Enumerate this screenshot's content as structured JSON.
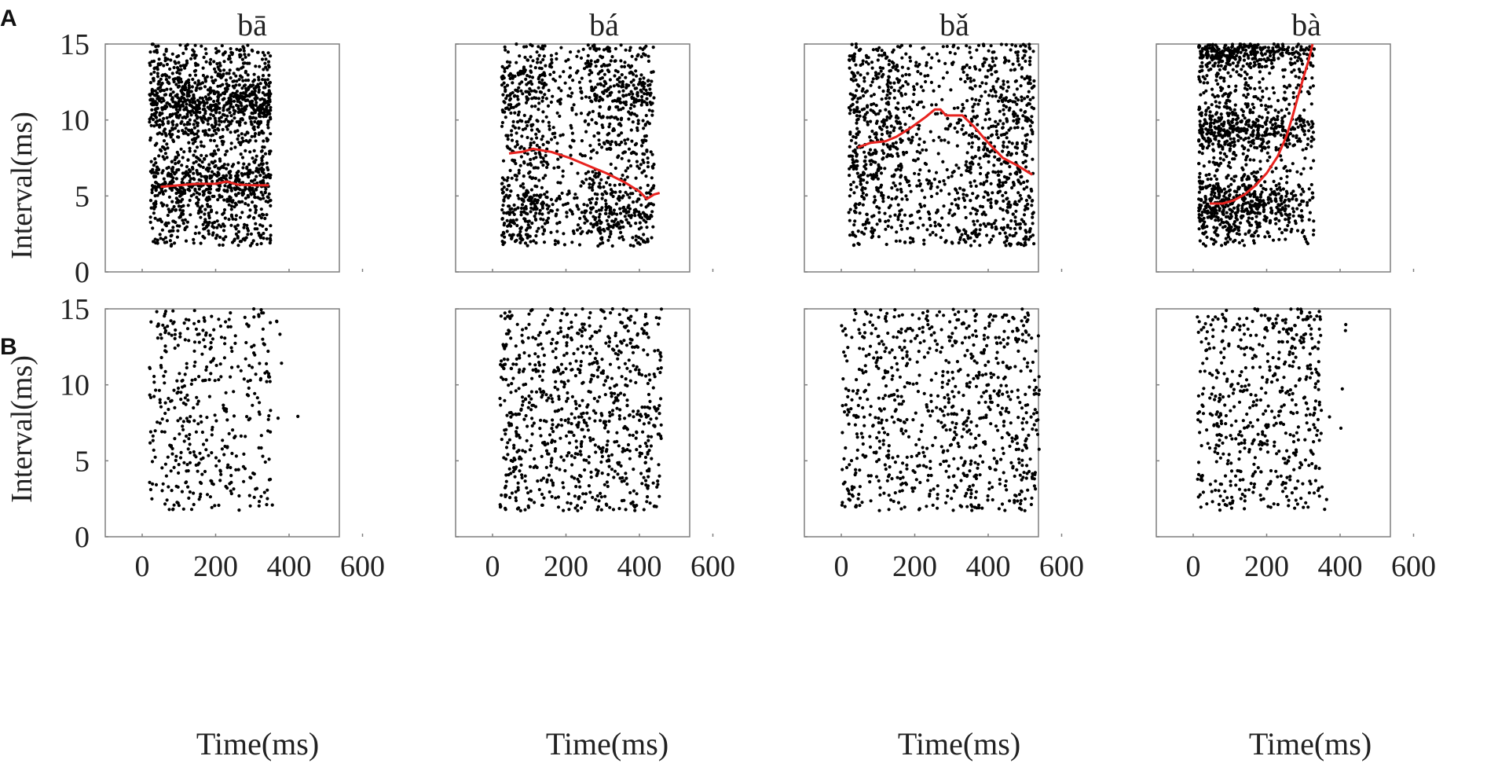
{
  "panel_labels": [
    "A",
    "B"
  ],
  "chart_data": [
    {
      "type": "scatter",
      "row": "A",
      "title": "bā",
      "xlabel": "Time(ms)",
      "ylabel": "Interval(ms)",
      "xlim": [
        -100,
        600
      ],
      "ylim": [
        0,
        15
      ],
      "xticks": [
        0,
        200,
        400,
        600
      ],
      "yticks": [
        0,
        5,
        10,
        15
      ],
      "point_color": "#000000",
      "scatter_spec": {
        "note": "dense spike-interval raster",
        "x_range": [
          20,
          350
        ],
        "y_range": [
          1.7,
          15
        ],
        "count": 1700,
        "seed": 11,
        "y_bias": [
          [
            11.2,
            1.4,
            0.25
          ],
          [
            5.8,
            1.2,
            0.15
          ]
        ]
      },
      "series": [
        {
          "color": "#e8231f",
          "points": [
            [
              50,
              5.6
            ],
            [
              100,
              5.7
            ],
            [
              150,
              5.8
            ],
            [
              200,
              5.8
            ],
            [
              230,
              5.95
            ],
            [
              260,
              5.75
            ],
            [
              300,
              5.7
            ],
            [
              345,
              5.7
            ]
          ]
        }
      ]
    },
    {
      "type": "scatter",
      "row": "A",
      "title": "bá",
      "xlabel": "Time(ms)",
      "ylabel": "Interval(ms)",
      "xlim": [
        -100,
        600
      ],
      "ylim": [
        0,
        15
      ],
      "xticks": [
        0,
        200,
        400,
        600
      ],
      "yticks": [
        0,
        5,
        10,
        15
      ],
      "point_color": "#000000",
      "scatter_spec": {
        "x_range": [
          25,
          440
        ],
        "y_range": [
          1.7,
          15
        ],
        "count": 1300,
        "seed": 23,
        "gap_x": [
          150,
          260
        ],
        "y_bias": [
          [
            12,
            1.8,
            0.15
          ],
          [
            4,
            1.5,
            0.15
          ]
        ]
      },
      "series": [
        {
          "color": "#e8231f",
          "points": [
            [
              45,
              7.8
            ],
            [
              80,
              7.9
            ],
            [
              110,
              8.1
            ],
            [
              160,
              7.9
            ],
            [
              210,
              7.5
            ],
            [
              260,
              7.0
            ],
            [
              310,
              6.5
            ],
            [
              360,
              5.9
            ],
            [
              400,
              5.3
            ],
            [
              420,
              4.8
            ],
            [
              440,
              5.1
            ],
            [
              455,
              5.2
            ]
          ]
        }
      ]
    },
    {
      "type": "scatter",
      "row": "A",
      "title": "bǎ",
      "xlabel": "Time(ms)",
      "ylabel": "Interval(ms)",
      "xlim": [
        -100,
        600
      ],
      "ylim": [
        0,
        15
      ],
      "xticks": [
        0,
        200,
        400,
        600
      ],
      "yticks": [
        0,
        5,
        10,
        15
      ],
      "point_color": "#000000",
      "scatter_spec": {
        "x_range": [
          20,
          525
        ],
        "y_range": [
          1.7,
          15
        ],
        "count": 1300,
        "seed": 37,
        "edge_dense": true
      },
      "series": [
        {
          "color": "#e8231f",
          "points": [
            [
              45,
              8.2
            ],
            [
              80,
              8.5
            ],
            [
              120,
              8.6
            ],
            [
              150,
              8.9
            ],
            [
              190,
              9.5
            ],
            [
              230,
              10.2
            ],
            [
              255,
              10.7
            ],
            [
              270,
              10.7
            ],
            [
              285,
              10.3
            ],
            [
              300,
              10.3
            ],
            [
              330,
              10.3
            ],
            [
              360,
              9.6
            ],
            [
              400,
              8.5
            ],
            [
              440,
              7.5
            ],
            [
              480,
              7.0
            ],
            [
              520,
              6.4
            ]
          ]
        }
      ]
    },
    {
      "type": "scatter",
      "row": "A",
      "title": "bà",
      "xlabel": "Time(ms)",
      "ylabel": "Interval(ms)",
      "xlim": [
        -100,
        600
      ],
      "ylim": [
        0,
        15
      ],
      "xticks": [
        0,
        200,
        400,
        600
      ],
      "yticks": [
        0,
        5,
        10,
        15
      ],
      "point_color": "#000000",
      "scatter_spec": {
        "x_range": [
          15,
          330
        ],
        "y_range": [
          1.7,
          15
        ],
        "count": 1500,
        "seed": 51,
        "left_dense": true,
        "y_bias": [
          [
            14.5,
            0.8,
            0.2
          ],
          [
            9.3,
            1.0,
            0.15
          ],
          [
            4.5,
            1.5,
            0.2
          ]
        ]
      },
      "series": [
        {
          "color": "#e8231f",
          "points": [
            [
              45,
              4.5
            ],
            [
              80,
              4.5
            ],
            [
              110,
              4.7
            ],
            [
              140,
              5.1
            ],
            [
              170,
              5.7
            ],
            [
              200,
              6.5
            ],
            [
              230,
              7.6
            ],
            [
              255,
              9.0
            ],
            [
              270,
              10.2
            ],
            [
              285,
              11.5
            ],
            [
              300,
              12.8
            ],
            [
              315,
              14.0
            ],
            [
              325,
              15.0
            ]
          ]
        }
      ]
    },
    {
      "type": "scatter",
      "row": "B",
      "title": "",
      "xlabel": "Time(ms)",
      "ylabel": "Interval(ms)",
      "xlim": [
        -100,
        600
      ],
      "ylim": [
        0,
        15
      ],
      "xticks": [
        0,
        200,
        400,
        600
      ],
      "yticks": [
        0,
        5,
        10,
        15
      ],
      "point_color": "#000000",
      "scatter_spec": {
        "x_range": [
          20,
          350
        ],
        "y_range": [
          1.7,
          15
        ],
        "count": 420,
        "seed": 61,
        "gap_x": [
          245,
          280
        ]
      },
      "series": []
    },
    {
      "type": "scatter",
      "row": "B",
      "title": "",
      "xlabel": "Time(ms)",
      "ylabel": "Interval(ms)",
      "xlim": [
        -100,
        600
      ],
      "ylim": [
        0,
        15
      ],
      "xticks": [
        0,
        200,
        400,
        600
      ],
      "yticks": [
        0,
        5,
        10,
        15
      ],
      "point_color": "#000000",
      "scatter_spec": {
        "x_range": [
          20,
          460
        ],
        "y_range": [
          1.7,
          15
        ],
        "count": 820,
        "seed": 73
      },
      "series": []
    },
    {
      "type": "scatter",
      "row": "B",
      "title": "",
      "xlabel": "Time(ms)",
      "ylabel": "Interval(ms)",
      "xlim": [
        -100,
        600
      ],
      "ylim": [
        0,
        15
      ],
      "xticks": [
        0,
        200,
        400,
        600
      ],
      "yticks": [
        0,
        5,
        10,
        15
      ],
      "point_color": "#000000",
      "scatter_spec": {
        "x_range": [
          0,
          540
        ],
        "y_range": [
          1.7,
          15
        ],
        "count": 820,
        "seed": 89
      },
      "series": []
    },
    {
      "type": "scatter",
      "row": "B",
      "title": "",
      "xlabel": "Time(ms)",
      "ylabel": "Interval(ms)",
      "xlim": [
        -100,
        600
      ],
      "ylim": [
        0,
        15
      ],
      "xticks": [
        0,
        200,
        400,
        600
      ],
      "yticks": [
        0,
        5,
        10,
        15
      ],
      "point_color": "#000000",
      "scatter_spec": {
        "x_range": [
          10,
          350
        ],
        "y_range": [
          1.7,
          15
        ],
        "count": 560,
        "seed": 97
      },
      "series": []
    }
  ]
}
